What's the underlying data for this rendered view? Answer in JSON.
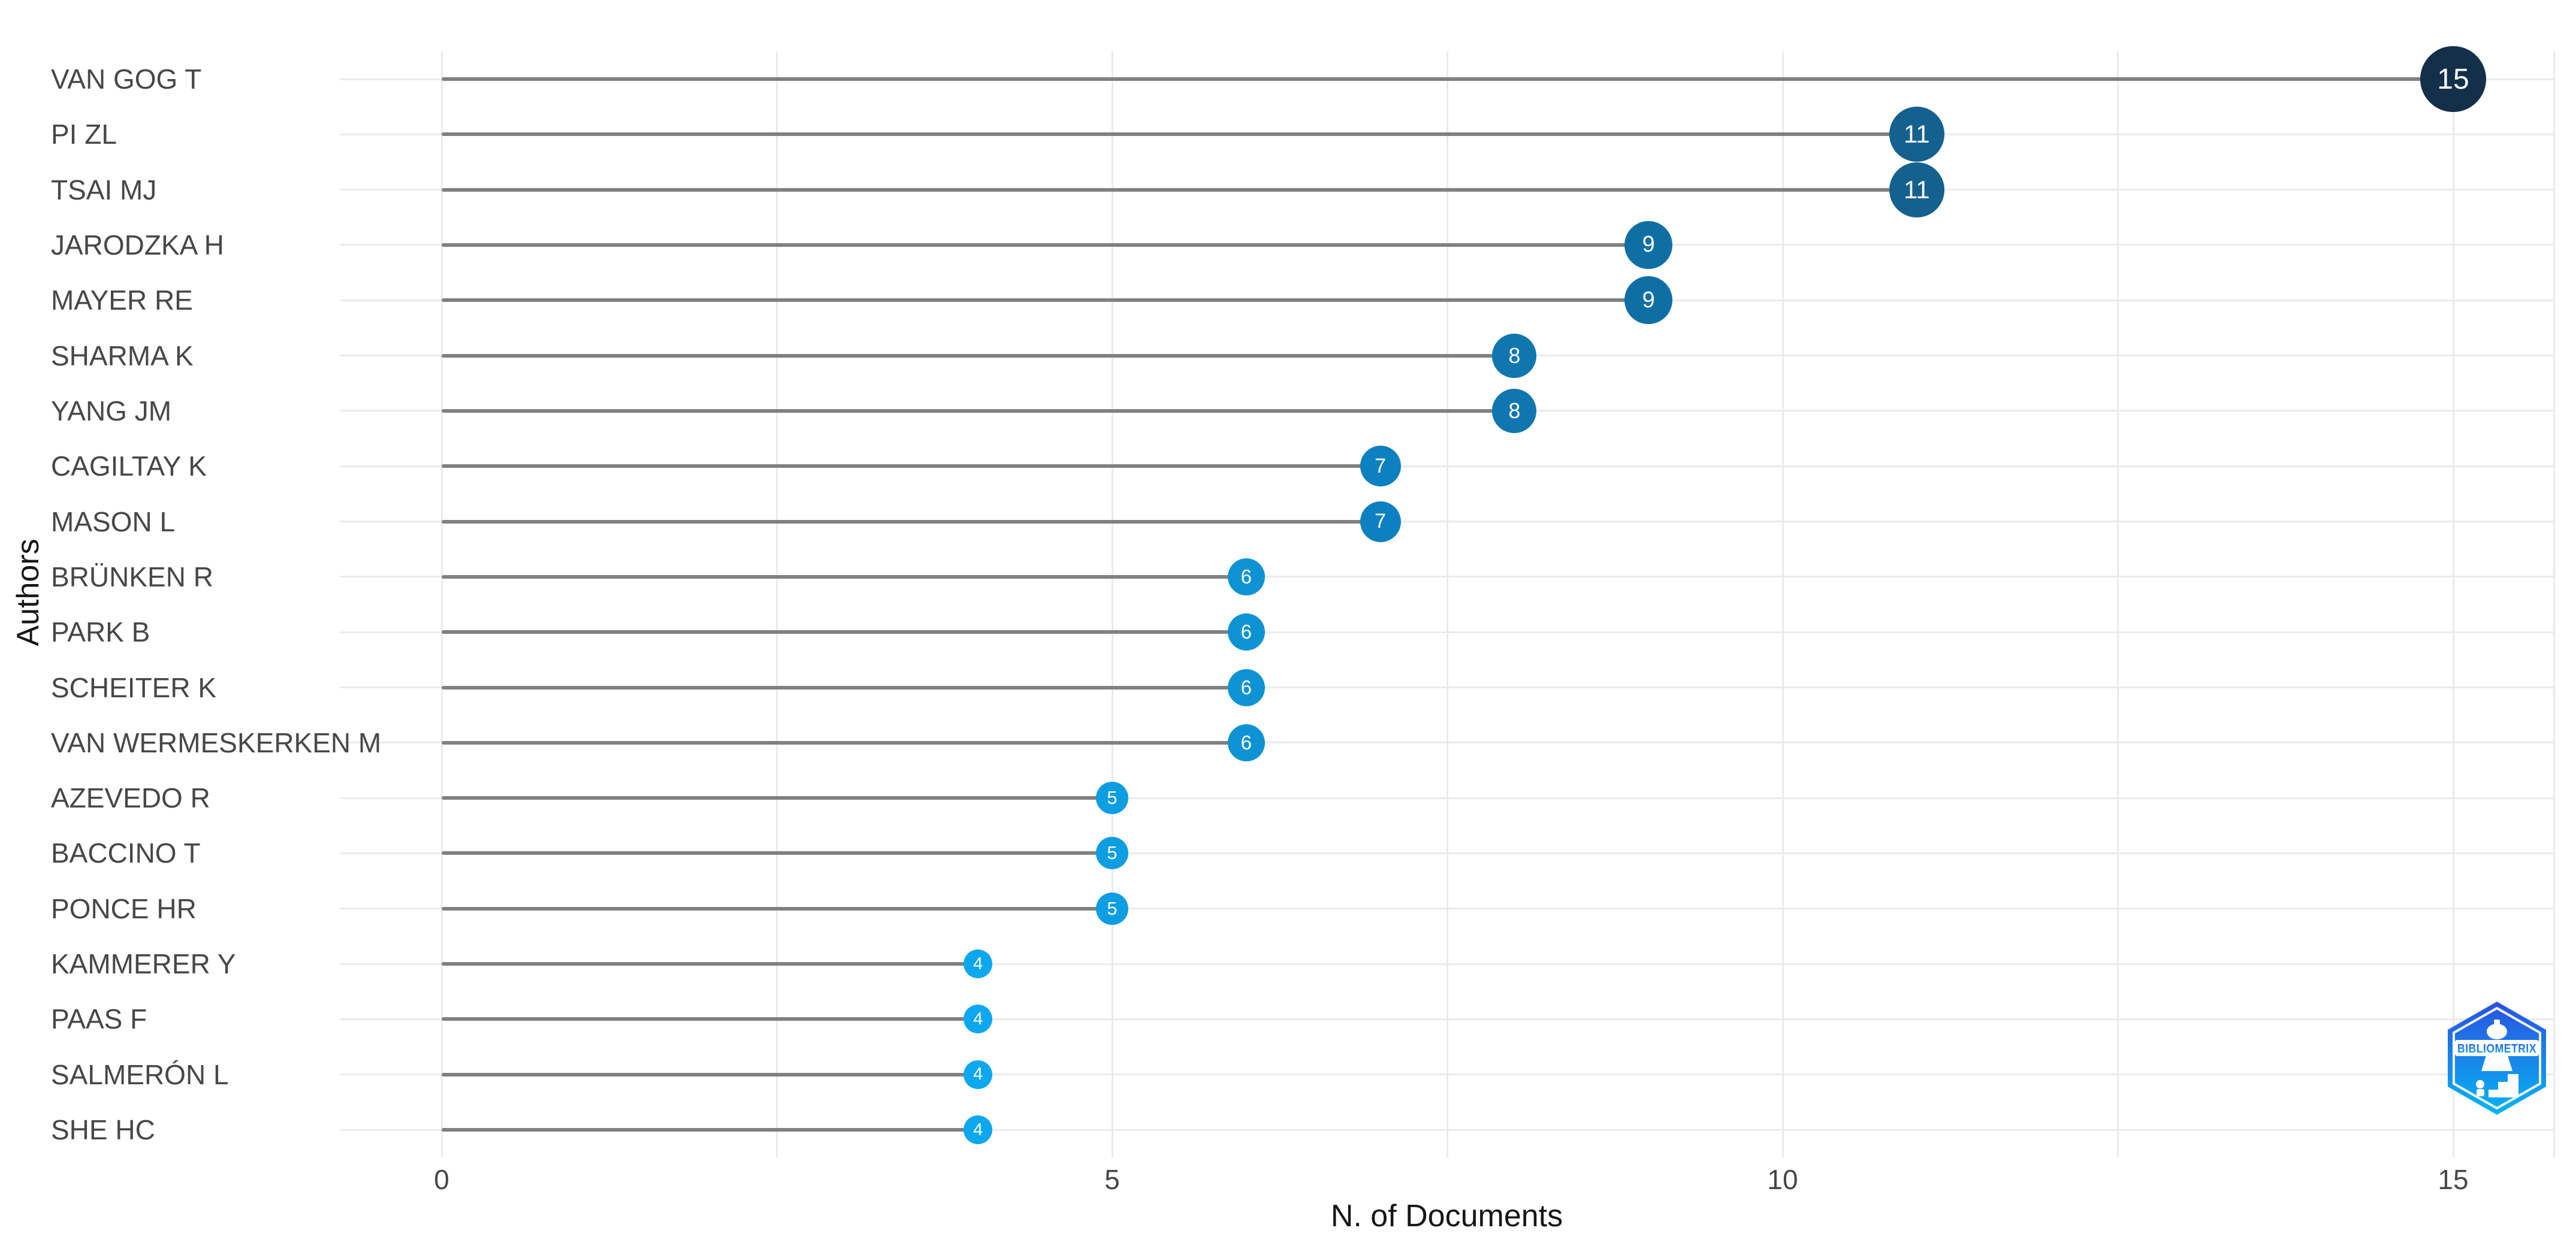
{
  "chart_data": {
    "type": "bar",
    "variant": "lollipop",
    "orientation": "horizontal",
    "title": "",
    "xlabel": "N. of Documents",
    "ylabel": "Authors",
    "categories": [
      "VAN GOG T",
      "PI ZL",
      "TSAI MJ",
      "JARODZKA H",
      "MAYER RE",
      "SHARMA K",
      "YANG JM",
      "CAGILTAY K",
      "MASON L",
      "BRÜNKEN R",
      "PARK B",
      "SCHEITER K",
      "VAN WERMESKERKEN M",
      "AZEVEDO R",
      "BACCINO T",
      "PONCE HR",
      "KAMMERER Y",
      "PAAS F",
      "SALMERÓN L",
      "SHE HC"
    ],
    "values": [
      15,
      11,
      11,
      9,
      9,
      8,
      8,
      7,
      7,
      6,
      6,
      6,
      6,
      5,
      5,
      5,
      4,
      4,
      4,
      4
    ],
    "xlim": [
      0,
      15.75
    ],
    "x_major_ticks": [
      0,
      5,
      10,
      15
    ],
    "x_tick_labels": [
      "0",
      "5",
      "10",
      "15"
    ],
    "x_minor_gridlines": [
      2.5,
      7.5,
      12.5
    ],
    "grid": true,
    "legend": "none",
    "value_styles": {
      "15": {
        "color": "#132f4a",
        "radius": 55,
        "font": 48
      },
      "11": {
        "color": "#14608e",
        "radius": 46,
        "font": 42
      },
      "9": {
        "color": "#0f6fa5",
        "radius": 40,
        "font": 38
      },
      "8": {
        "color": "#0f76b0",
        "radius": 37,
        "font": 36
      },
      "7": {
        "color": "#0c80c0",
        "radius": 34,
        "font": 34
      },
      "6": {
        "color": "#0d93d4",
        "radius": 31,
        "font": 33
      },
      "5": {
        "color": "#0c9de2",
        "radius": 27,
        "font": 31
      },
      "4": {
        "color": "#0ba7ef",
        "radius": 24,
        "font": 29
      }
    }
  },
  "colors": {
    "background": "#ffffff",
    "gridline": "#ebebeb",
    "stem": "#808080",
    "tick_text": "#474747",
    "axis_title_text": "#161616",
    "point_label_text": "#ffffff",
    "logo_gradient_top": "#2b52e0",
    "logo_gradient_bottom": "#06b6f2"
  },
  "watermark": {
    "label": "BIBLIOMETRIX"
  }
}
